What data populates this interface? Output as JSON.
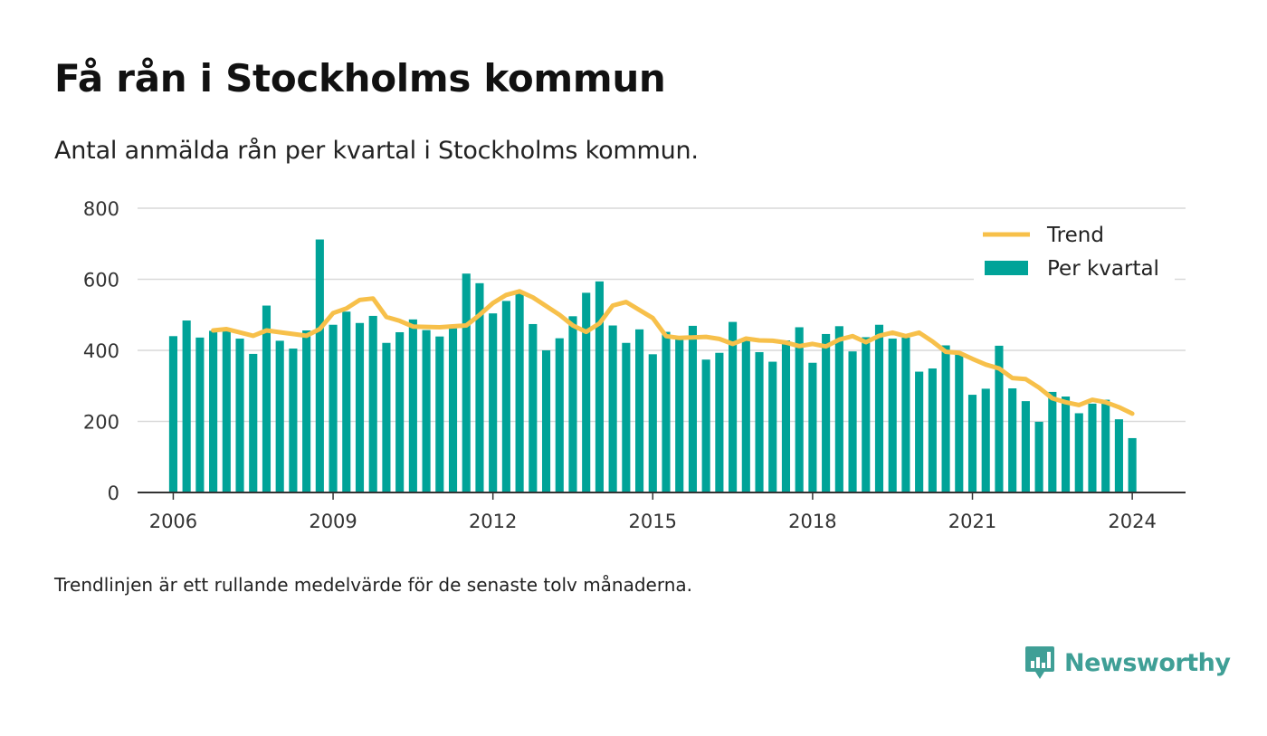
{
  "header": {
    "title": "Få rån i Stockholms kommun",
    "subtitle": "Antal anmälda rån per kvartal i Stockholms kommun."
  },
  "footer": {
    "note": "Trendlinjen är ett rullande medelvärde för de senaste tolv månaderna.",
    "brand": "Newsworthy"
  },
  "colors": {
    "bars": "#00a398",
    "trend": "#f7c04a",
    "grid": "#d9d9d9",
    "axis": "#333333",
    "brand": "#3f9f96"
  },
  "chart_data": {
    "type": "bar",
    "ylim": [
      0,
      800
    ],
    "yticks": [
      0,
      200,
      400,
      600,
      800
    ],
    "xlim": [
      2005.33,
      2025.0
    ],
    "xticks": [
      2006,
      2009,
      2012,
      2015,
      2018,
      2021,
      2024
    ],
    "grid": true,
    "legend_position": "top-right",
    "legend": [
      "Trend",
      "Per kvartal"
    ],
    "x_start": 2006.0,
    "x_step": 0.25,
    "series": [
      {
        "name": "Per kvartal",
        "type": "bar",
        "values": [
          440,
          484,
          436,
          455,
          455,
          433,
          390,
          526,
          427,
          405,
          456,
          712,
          472,
          509,
          477,
          497,
          421,
          451,
          487,
          457,
          439,
          462,
          616,
          589,
          504,
          539,
          564,
          474,
          400,
          434,
          496,
          562,
          594,
          470,
          421,
          459,
          389,
          452,
          431,
          469,
          374,
          393,
          480,
          433,
          395,
          368,
          428,
          465,
          365,
          446,
          468,
          397,
          437,
          472,
          433,
          436,
          340,
          349,
          414,
          391,
          275,
          292,
          413,
          293,
          257,
          199,
          283,
          270,
          223,
          250,
          261,
          206,
          153
        ]
      },
      {
        "name": "Trend",
        "type": "line",
        "x": [
          2006.75,
          2007.0,
          2007.5,
          2007.75,
          2008.0,
          2008.5,
          2008.75,
          2009.0,
          2009.25,
          2009.5,
          2009.75,
          2010.0,
          2010.25,
          2010.5,
          2011.0,
          2011.5,
          2011.75,
          2012.0,
          2012.25,
          2012.5,
          2012.75,
          2013.25,
          2013.5,
          2013.75,
          2014.0,
          2014.25,
          2014.5,
          2015.0,
          2015.25,
          2015.5,
          2016.0,
          2016.25,
          2016.5,
          2016.75,
          2017.0,
          2017.25,
          2017.5,
          2017.75,
          2018.0,
          2018.25,
          2018.5,
          2018.75,
          2019.0,
          2019.25,
          2019.5,
          2019.75,
          2020.0,
          2020.25,
          2020.5,
          2020.75,
          2021.0,
          2021.25,
          2021.5,
          2021.75,
          2022.0,
          2022.25,
          2022.5,
          2022.75,
          2023.0,
          2023.25,
          2023.5,
          2023.75,
          2024.0
        ],
        "values": [
          456,
          460,
          441,
          456,
          451,
          441,
          460,
          505,
          518,
          542,
          546,
          494,
          483,
          467,
          465,
          470,
          500,
          533,
          556,
          566,
          549,
          500,
          470,
          452,
          476,
          526,
          536,
          491,
          440,
          435,
          438,
          432,
          418,
          433,
          428,
          427,
          422,
          412,
          418,
          411,
          430,
          440,
          423,
          441,
          450,
          440,
          450,
          425,
          396,
          393,
          376,
          360,
          349,
          322,
          319,
          295,
          265,
          254,
          246,
          261,
          254,
          240,
          222
        ]
      }
    ]
  }
}
